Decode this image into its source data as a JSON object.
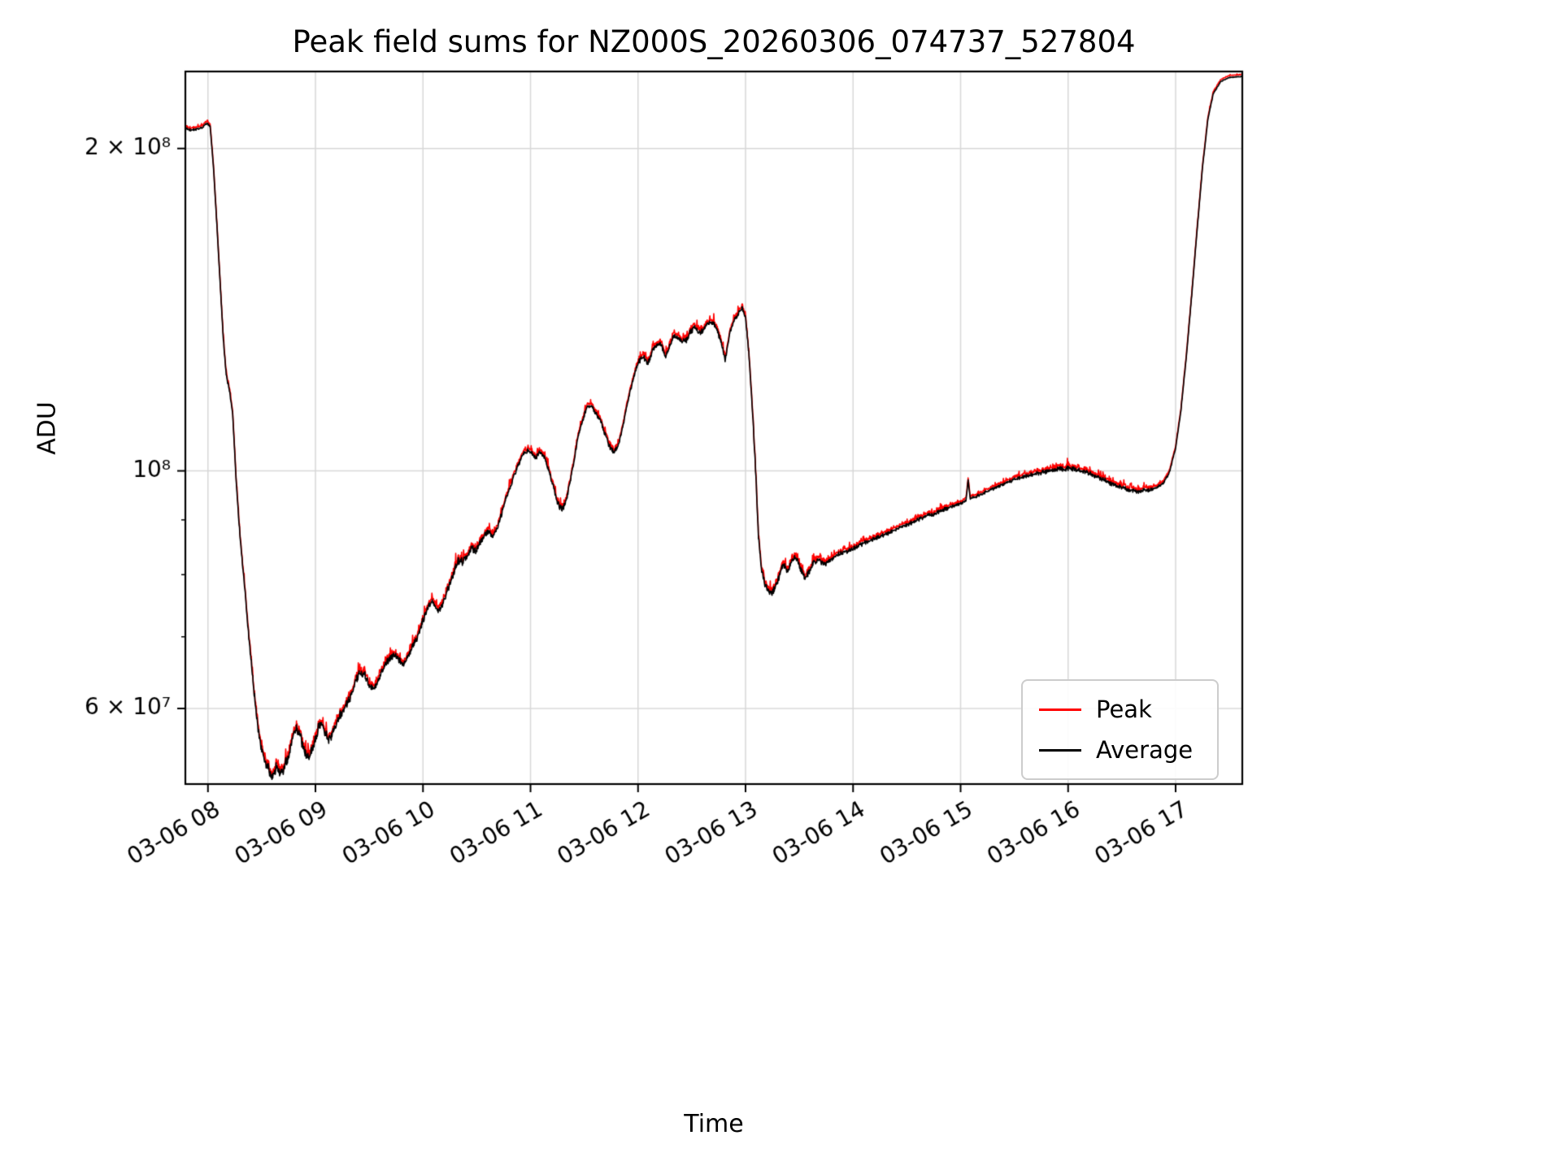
{
  "chart_data": {
    "type": "line",
    "title": "Peak field sums for NZ000S_20260306_074737_527804",
    "xlabel": "Time",
    "ylabel": "ADU",
    "y_scale": "log",
    "grid": true,
    "xlim": [
      7.79,
      17.62
    ],
    "ylim": [
      51000000,
      236000000
    ],
    "x_unit": "hour of day on 2026-03-06",
    "value_scale": 10000000,
    "x_ticks": [
      {
        "value": 8,
        "label": "03-06 08"
      },
      {
        "value": 9,
        "label": "03-06 09"
      },
      {
        "value": 10,
        "label": "03-06 10"
      },
      {
        "value": 11,
        "label": "03-06 11"
      },
      {
        "value": 12,
        "label": "03-06 12"
      },
      {
        "value": 13,
        "label": "03-06 13"
      },
      {
        "value": 14,
        "label": "03-06 14"
      },
      {
        "value": 15,
        "label": "03-06 15"
      },
      {
        "value": 16,
        "label": "03-06 16"
      },
      {
        "value": 17,
        "label": "03-06 17"
      }
    ],
    "y_ticks_major": [
      {
        "value": 200000000,
        "label": "2 × 10⁸"
      },
      {
        "value": 100000000,
        "label": "10⁸"
      },
      {
        "value": 60000000,
        "label": "6 × 10⁷"
      }
    ],
    "y_ticks_minor": [
      70000000,
      80000000,
      90000000
    ],
    "legend": {
      "position": "lower right"
    },
    "series": [
      {
        "name": "Peak",
        "color": "#ff0000",
        "role": "peak",
        "peak_offset_rel": 0.005
      },
      {
        "name": "Average",
        "color": "#000000",
        "role": "average"
      }
    ],
    "noise_seed": 1337,
    "keypoints_format": "[hour, value_in_1e7_ADU, relative_noise]",
    "keypoints": [
      [
        7.79,
        20.9,
        0.003
      ],
      [
        7.84,
        20.8,
        0.003
      ],
      [
        7.89,
        20.85,
        0.003
      ],
      [
        7.94,
        20.9,
        0.003
      ],
      [
        7.99,
        21.1,
        0.003
      ],
      [
        8.02,
        21.0,
        0.002
      ],
      [
        8.05,
        19.3,
        0.002
      ],
      [
        8.08,
        17.2,
        0.003
      ],
      [
        8.11,
        15.2,
        0.003
      ],
      [
        8.14,
        13.4,
        0.004
      ],
      [
        8.17,
        12.3,
        0.005
      ],
      [
        8.2,
        11.9,
        0.005
      ],
      [
        8.23,
        11.3,
        0.004
      ],
      [
        8.26,
        9.9,
        0.005
      ],
      [
        8.29,
        8.9,
        0.005
      ],
      [
        8.32,
        8.2,
        0.006
      ],
      [
        8.35,
        7.6,
        0.007
      ],
      [
        8.38,
        7.0,
        0.008
      ],
      [
        8.41,
        6.5,
        0.009
      ],
      [
        8.44,
        6.05,
        0.01
      ],
      [
        8.47,
        5.7,
        0.012
      ],
      [
        8.5,
        5.5,
        0.013
      ],
      [
        8.53,
        5.35,
        0.013
      ],
      [
        8.57,
        5.25,
        0.014
      ],
      [
        8.61,
        5.2,
        0.014
      ],
      [
        8.64,
        5.3,
        0.013
      ],
      [
        8.67,
        5.22,
        0.013
      ],
      [
        8.7,
        5.26,
        0.013
      ],
      [
        8.73,
        5.35,
        0.013
      ],
      [
        8.76,
        5.45,
        0.012
      ],
      [
        8.79,
        5.65,
        0.012
      ],
      [
        8.82,
        5.75,
        0.012
      ],
      [
        8.85,
        5.7,
        0.012
      ],
      [
        8.88,
        5.55,
        0.012
      ],
      [
        8.91,
        5.45,
        0.012
      ],
      [
        8.94,
        5.42,
        0.012
      ],
      [
        8.97,
        5.5,
        0.012
      ],
      [
        9.0,
        5.62,
        0.012
      ],
      [
        9.03,
        5.78,
        0.012
      ],
      [
        9.06,
        5.8,
        0.011
      ],
      [
        9.09,
        5.7,
        0.011
      ],
      [
        9.12,
        5.6,
        0.011
      ],
      [
        9.15,
        5.65,
        0.011
      ],
      [
        9.18,
        5.75,
        0.011
      ],
      [
        9.22,
        5.9,
        0.011
      ],
      [
        9.26,
        6.0,
        0.011
      ],
      [
        9.3,
        6.08,
        0.01
      ],
      [
        9.34,
        6.2,
        0.011
      ],
      [
        9.38,
        6.38,
        0.012
      ],
      [
        9.42,
        6.5,
        0.011
      ],
      [
        9.46,
        6.45,
        0.01
      ],
      [
        9.5,
        6.3,
        0.009
      ],
      [
        9.54,
        6.25,
        0.009
      ],
      [
        9.58,
        6.35,
        0.009
      ],
      [
        9.62,
        6.5,
        0.009
      ],
      [
        9.66,
        6.62,
        0.008
      ],
      [
        9.7,
        6.7,
        0.008
      ],
      [
        9.74,
        6.74,
        0.008
      ],
      [
        9.78,
        6.65,
        0.008
      ],
      [
        9.82,
        6.6,
        0.008
      ],
      [
        9.86,
        6.72,
        0.008
      ],
      [
        9.9,
        6.85,
        0.008
      ],
      [
        9.95,
        7.0,
        0.008
      ],
      [
        10.0,
        7.25,
        0.009
      ],
      [
        10.05,
        7.48,
        0.009
      ],
      [
        10.09,
        7.55,
        0.009
      ],
      [
        10.13,
        7.42,
        0.008
      ],
      [
        10.17,
        7.45,
        0.008
      ],
      [
        10.21,
        7.65,
        0.009
      ],
      [
        10.25,
        7.85,
        0.009
      ],
      [
        10.29,
        8.05,
        0.01
      ],
      [
        10.33,
        8.25,
        0.011
      ],
      [
        10.37,
        8.22,
        0.01
      ],
      [
        10.41,
        8.32,
        0.01
      ],
      [
        10.45,
        8.48,
        0.01
      ],
      [
        10.49,
        8.42,
        0.01
      ],
      [
        10.53,
        8.55,
        0.009
      ],
      [
        10.57,
        8.72,
        0.009
      ],
      [
        10.61,
        8.78,
        0.008
      ],
      [
        10.65,
        8.68,
        0.008
      ],
      [
        10.69,
        8.85,
        0.008
      ],
      [
        10.73,
        9.1,
        0.008
      ],
      [
        10.77,
        9.4,
        0.007
      ],
      [
        10.81,
        9.65,
        0.007
      ],
      [
        10.85,
        9.9,
        0.007
      ],
      [
        10.89,
        10.15,
        0.007
      ],
      [
        10.93,
        10.35,
        0.007
      ],
      [
        10.97,
        10.45,
        0.006
      ],
      [
        11.01,
        10.4,
        0.006
      ],
      [
        11.05,
        10.28,
        0.006
      ],
      [
        11.09,
        10.42,
        0.006
      ],
      [
        11.13,
        10.3,
        0.006
      ],
      [
        11.17,
        10.0,
        0.007
      ],
      [
        11.21,
        9.7,
        0.007
      ],
      [
        11.25,
        9.35,
        0.007
      ],
      [
        11.29,
        9.18,
        0.008
      ],
      [
        11.33,
        9.35,
        0.007
      ],
      [
        11.37,
        9.8,
        0.007
      ],
      [
        11.41,
        10.3,
        0.006
      ],
      [
        11.45,
        10.85,
        0.006
      ],
      [
        11.49,
        11.2,
        0.006
      ],
      [
        11.53,
        11.5,
        0.006
      ],
      [
        11.57,
        11.5,
        0.006
      ],
      [
        11.61,
        11.3,
        0.006
      ],
      [
        11.65,
        11.15,
        0.006
      ],
      [
        11.69,
        10.85,
        0.006
      ],
      [
        11.73,
        10.55,
        0.007
      ],
      [
        11.77,
        10.42,
        0.007
      ],
      [
        11.81,
        10.5,
        0.007
      ],
      [
        11.85,
        10.9,
        0.006
      ],
      [
        11.89,
        11.4,
        0.006
      ],
      [
        11.93,
        11.9,
        0.006
      ],
      [
        11.97,
        12.35,
        0.006
      ],
      [
        12.01,
        12.65,
        0.006
      ],
      [
        12.05,
        12.8,
        0.007
      ],
      [
        12.09,
        12.6,
        0.007
      ],
      [
        12.13,
        12.9,
        0.007
      ],
      [
        12.17,
        13.1,
        0.007
      ],
      [
        12.21,
        13.15,
        0.007
      ],
      [
        12.25,
        12.8,
        0.008
      ],
      [
        12.29,
        13.05,
        0.007
      ],
      [
        12.33,
        13.35,
        0.007
      ],
      [
        12.37,
        13.3,
        0.007
      ],
      [
        12.41,
        13.2,
        0.007
      ],
      [
        12.45,
        13.25,
        0.007
      ],
      [
        12.49,
        13.5,
        0.007
      ],
      [
        12.53,
        13.6,
        0.007
      ],
      [
        12.57,
        13.45,
        0.008
      ],
      [
        12.61,
        13.55,
        0.007
      ],
      [
        12.65,
        13.75,
        0.007
      ],
      [
        12.69,
        13.78,
        0.007
      ],
      [
        12.73,
        13.6,
        0.007
      ],
      [
        12.77,
        13.2,
        0.008
      ],
      [
        12.81,
        12.7,
        0.008
      ],
      [
        12.85,
        13.4,
        0.007
      ],
      [
        12.89,
        13.8,
        0.006
      ],
      [
        12.93,
        14.0,
        0.006
      ],
      [
        12.97,
        14.2,
        0.005
      ],
      [
        13.0,
        13.9,
        0.004
      ],
      [
        13.03,
        12.9,
        0.005
      ],
      [
        13.06,
        11.6,
        0.007
      ],
      [
        13.09,
        10.2,
        0.008
      ],
      [
        13.12,
        8.7,
        0.009
      ],
      [
        13.15,
        8.05,
        0.01
      ],
      [
        13.18,
        7.85,
        0.01
      ],
      [
        13.21,
        7.72,
        0.01
      ],
      [
        13.24,
        7.68,
        0.01
      ],
      [
        13.27,
        7.78,
        0.009
      ],
      [
        13.31,
        7.95,
        0.009
      ],
      [
        13.35,
        8.2,
        0.008
      ],
      [
        13.39,
        8.05,
        0.008
      ],
      [
        13.43,
        8.25,
        0.008
      ],
      [
        13.47,
        8.3,
        0.008
      ],
      [
        13.51,
        8.1,
        0.008
      ],
      [
        13.55,
        7.95,
        0.008
      ],
      [
        13.59,
        8.05,
        0.008
      ],
      [
        13.63,
        8.2,
        0.007
      ],
      [
        13.68,
        8.25,
        0.007
      ],
      [
        13.74,
        8.18,
        0.007
      ],
      [
        13.8,
        8.28,
        0.006
      ],
      [
        13.88,
        8.38,
        0.006
      ],
      [
        13.96,
        8.42,
        0.005
      ],
      [
        14.04,
        8.5,
        0.005
      ],
      [
        14.12,
        8.58,
        0.005
      ],
      [
        14.2,
        8.65,
        0.005
      ],
      [
        14.28,
        8.7,
        0.005
      ],
      [
        14.36,
        8.78,
        0.005
      ],
      [
        14.44,
        8.85,
        0.005
      ],
      [
        14.52,
        8.92,
        0.005
      ],
      [
        14.6,
        9.0,
        0.005
      ],
      [
        14.68,
        9.08,
        0.005
      ],
      [
        14.76,
        9.12,
        0.005
      ],
      [
        14.84,
        9.2,
        0.005
      ],
      [
        14.92,
        9.26,
        0.004
      ],
      [
        15.0,
        9.32,
        0.004
      ],
      [
        15.05,
        9.38,
        0.003
      ],
      [
        15.07,
        9.8,
        0.002
      ],
      [
        15.09,
        9.42,
        0.003
      ],
      [
        15.14,
        9.46,
        0.004
      ],
      [
        15.2,
        9.52,
        0.004
      ],
      [
        15.28,
        9.6,
        0.004
      ],
      [
        15.36,
        9.68,
        0.004
      ],
      [
        15.44,
        9.76,
        0.004
      ],
      [
        15.52,
        9.83,
        0.005
      ],
      [
        15.6,
        9.88,
        0.005
      ],
      [
        15.68,
        9.93,
        0.005
      ],
      [
        15.76,
        9.97,
        0.005
      ],
      [
        15.84,
        10.0,
        0.006
      ],
      [
        15.92,
        10.04,
        0.006
      ],
      [
        16.0,
        10.05,
        0.006
      ],
      [
        16.08,
        10.03,
        0.006
      ],
      [
        16.16,
        9.98,
        0.006
      ],
      [
        16.24,
        9.9,
        0.006
      ],
      [
        16.32,
        9.82,
        0.006
      ],
      [
        16.4,
        9.73,
        0.006
      ],
      [
        16.48,
        9.66,
        0.006
      ],
      [
        16.56,
        9.6,
        0.006
      ],
      [
        16.64,
        9.57,
        0.006
      ],
      [
        16.72,
        9.58,
        0.005
      ],
      [
        16.8,
        9.62,
        0.004
      ],
      [
        16.88,
        9.72,
        0.003
      ],
      [
        16.94,
        9.95,
        0.003
      ],
      [
        17.0,
        10.5,
        0.002
      ],
      [
        17.05,
        11.4,
        0.002
      ],
      [
        17.1,
        12.8,
        0.002
      ],
      [
        17.15,
        14.6,
        0.002
      ],
      [
        17.2,
        16.8,
        0.002
      ],
      [
        17.25,
        19.2,
        0.002
      ],
      [
        17.3,
        21.3,
        0.002
      ],
      [
        17.35,
        22.5,
        0.002
      ],
      [
        17.42,
        23.1,
        0.001
      ],
      [
        17.5,
        23.3,
        0.001
      ],
      [
        17.62,
        23.35,
        0.001
      ]
    ]
  }
}
